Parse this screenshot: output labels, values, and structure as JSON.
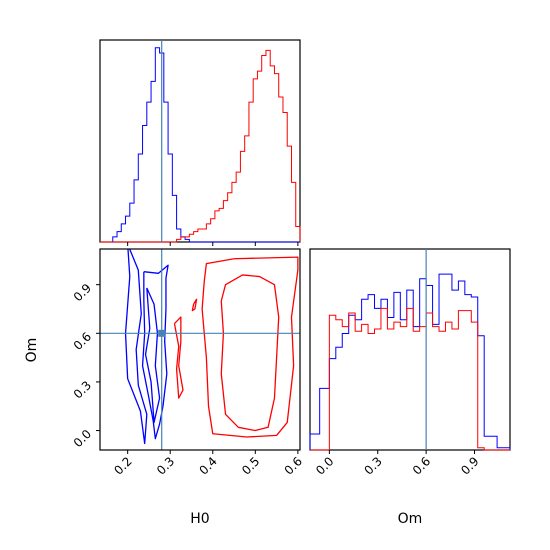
{
  "chart_data": {
    "type": "corner",
    "parameters": [
      "H0",
      "Om"
    ],
    "truth": {
      "H0": 0.28,
      "Om": 0.6
    },
    "colors": {
      "series_a": "#0000ff",
      "series_b": "#ff0000",
      "truth": "#4682b4"
    },
    "panels": [
      {
        "id": "hist-H0",
        "type": "histogram",
        "x_range": [
          0.135,
          0.605
        ],
        "bin_edges": [
          0.135,
          0.145,
          0.155,
          0.165,
          0.175,
          0.185,
          0.195,
          0.205,
          0.215,
          0.225,
          0.235,
          0.245,
          0.255,
          0.265,
          0.275,
          0.285,
          0.295,
          0.305,
          0.315,
          0.325,
          0.335,
          0.345,
          0.355,
          0.365,
          0.375,
          0.385,
          0.395,
          0.405,
          0.415,
          0.425,
          0.435,
          0.445,
          0.455,
          0.465,
          0.475,
          0.485,
          0.495,
          0.505,
          0.515,
          0.525,
          0.535,
          0.545,
          0.555,
          0.565,
          0.575,
          0.585,
          0.595,
          0.605
        ],
        "series": [
          {
            "color_key": "series_a",
            "values": [
              0,
              0,
              0,
              0.02,
              0.04,
              0.07,
              0.1,
              0.15,
              0.24,
              0.34,
              0.45,
              0.54,
              0.62,
              0.75,
              0.73,
              0.54,
              0.34,
              0.18,
              0.05,
              0.02,
              0.01,
              0,
              0,
              0,
              0,
              0,
              0,
              0,
              0,
              0,
              0,
              0,
              0,
              0,
              0,
              0,
              0,
              0,
              0,
              0,
              0,
              0,
              0,
              0,
              0,
              0,
              0
            ]
          },
          {
            "color_key": "series_b",
            "values": [
              0,
              0,
              0,
              0,
              0,
              0,
              0,
              0,
              0,
              0,
              0,
              0,
              0,
              0,
              0,
              0,
              0,
              0,
              0.01,
              0.02,
              0.02,
              0.03,
              0.04,
              0.05,
              0.05,
              0.07,
              0.09,
              0.12,
              0.13,
              0.16,
              0.19,
              0.23,
              0.27,
              0.35,
              0.41,
              0.54,
              0.63,
              0.66,
              0.72,
              0.74,
              0.68,
              0.65,
              0.56,
              0.5,
              0.37,
              0.23,
              0.06
            ]
          }
        ]
      },
      {
        "id": "contour-H0-Om",
        "type": "contour",
        "x_range": [
          0.135,
          0.605
        ],
        "y_range": [
          -0.12,
          1.12
        ],
        "contours": [
          {
            "color_key": "series_a",
            "points": [
              [
                0.2,
                0.32
              ],
              [
                0.195,
                0.6
              ],
              [
                0.205,
                0.95
              ],
              [
                0.2,
                1.15
              ],
              [
                0.225,
                0.99
              ],
              [
                0.232,
                0.72
              ],
              [
                0.22,
                0.5
              ],
              [
                0.225,
                0.28
              ],
              [
                0.245,
                0.1
              ],
              [
                0.24,
                -0.08
              ],
              [
                0.23,
                0.12
              ],
              [
                0.2,
                0.32
              ]
            ]
          },
          {
            "color_key": "series_a",
            "points": [
              [
                0.245,
                0.88
              ],
              [
                0.252,
                0.63
              ],
              [
                0.242,
                0.47
              ],
              [
                0.255,
                0.3
              ],
              [
                0.262,
                0.05
              ],
              [
                0.275,
                0.2
              ],
              [
                0.265,
                0.4
              ],
              [
                0.27,
                0.6
              ],
              [
                0.262,
                0.78
              ],
              [
                0.25,
                0.85
              ],
              [
                0.245,
                0.88
              ]
            ]
          },
          {
            "color_key": "series_a",
            "points": [
              [
                0.238,
                0.98
              ],
              [
                0.272,
                0.97
              ],
              [
                0.295,
                1.02
              ],
              [
                0.29,
                0.94
              ],
              [
                0.29,
                0.75
              ],
              [
                0.287,
                0.55
              ],
              [
                0.292,
                0.35
              ],
              [
                0.283,
                0.15
              ],
              [
                0.275,
                0.04
              ],
              [
                0.265,
                -0.05
              ],
              [
                0.26,
                0.06
              ],
              [
                0.25,
                0.2
              ],
              [
                0.235,
                0.4
              ],
              [
                0.24,
                0.6
              ],
              [
                0.238,
                0.8
              ],
              [
                0.238,
                0.98
              ]
            ]
          },
          {
            "color_key": "series_b",
            "points": [
              [
                0.42,
                0.8
              ],
              [
                0.43,
                0.9
              ],
              [
                0.47,
                0.96
              ],
              [
                0.51,
                0.95
              ],
              [
                0.545,
                0.9
              ],
              [
                0.555,
                0.7
              ],
              [
                0.55,
                0.45
              ],
              [
                0.545,
                0.2
              ],
              [
                0.53,
                0.02
              ],
              [
                0.5,
                0.0
              ],
              [
                0.46,
                0.02
              ],
              [
                0.43,
                0.1
              ],
              [
                0.42,
                0.35
              ],
              [
                0.425,
                0.6
              ],
              [
                0.42,
                0.8
              ]
            ]
          },
          {
            "color_key": "series_b",
            "points": [
              [
                0.38,
                0.92
              ],
              [
                0.385,
                1.03
              ],
              [
                0.45,
                1.06
              ],
              [
                0.6,
                1.07
              ],
              [
                0.6,
                0.99
              ],
              [
                0.585,
                0.7
              ],
              [
                0.59,
                0.4
              ],
              [
                0.575,
                0.05
              ],
              [
                0.55,
                -0.03
              ],
              [
                0.48,
                -0.04
              ],
              [
                0.4,
                -0.02
              ],
              [
                0.39,
                0.15
              ],
              [
                0.385,
                0.45
              ],
              [
                0.375,
                0.75
              ],
              [
                0.38,
                0.92
              ]
            ]
          },
          {
            "color_key": "series_b",
            "points": [
              [
                0.31,
                0.66
              ],
              [
                0.325,
                0.7
              ],
              [
                0.325,
                0.55
              ],
              [
                0.32,
                0.4
              ],
              [
                0.33,
                0.25
              ],
              [
                0.32,
                0.2
              ],
              [
                0.315,
                0.38
              ],
              [
                0.32,
                0.52
              ],
              [
                0.31,
                0.66
              ]
            ]
          },
          {
            "color_key": "series_b",
            "points": [
              [
                0.355,
                0.78
              ],
              [
                0.362,
                0.81
              ],
              [
                0.358,
                0.75
              ],
              [
                0.352,
                0.74
              ],
              [
                0.355,
                0.78
              ]
            ]
          }
        ]
      },
      {
        "id": "hist-Om",
        "type": "histogram",
        "x_range": [
          -0.12,
          1.12
        ],
        "bin_edges": [
          -0.12,
          -0.06,
          0.0,
          0.04,
          0.08,
          0.12,
          0.16,
          0.2,
          0.24,
          0.28,
          0.32,
          0.36,
          0.4,
          0.44,
          0.48,
          0.52,
          0.56,
          0.6,
          0.64,
          0.68,
          0.72,
          0.76,
          0.8,
          0.84,
          0.88,
          0.92,
          0.96,
          1.0,
          1.04,
          1.08,
          1.12
        ],
        "series": [
          {
            "color_key": "series_a",
            "values": [
              0.07,
              0.27,
              0.4,
              0.45,
              0.51,
              0.59,
              0.57,
              0.66,
              0.68,
              0.62,
              0.66,
              0.58,
              0.69,
              0.57,
              0.7,
              0.54,
              0.75,
              0.72,
              0.55,
              0.77,
              0.77,
              0.7,
              0.74,
              0.68,
              0.67,
              0.5,
              0.06,
              0.06,
              0.01,
              0.01
            ]
          },
          {
            "color_key": "series_b",
            "values": [
              0,
              0,
              0.59,
              0.57,
              0.54,
              0.6,
              0.52,
              0.55,
              0.51,
              0.53,
              0.62,
              0.53,
              0.56,
              0.54,
              0.62,
              0.52,
              0.54,
              0.6,
              0.54,
              0.52,
              0.56,
              0.53,
              0.61,
              0.61,
              0.56,
              0.01,
              0,
              0,
              0,
              0
            ]
          }
        ]
      }
    ],
    "ticks": {
      "H0": [
        "0.2",
        "0.3",
        "0.4",
        "0.5",
        "0.6"
      ],
      "Om": [
        "0.0",
        "0.3",
        "0.6",
        "0.9"
      ]
    },
    "tick_values": {
      "H0": [
        0.2,
        0.3,
        0.4,
        0.5,
        0.6
      ],
      "Om": [
        0.0,
        0.3,
        0.6,
        0.9
      ]
    },
    "xlabels": {
      "H0": "H0",
      "Om": "Om"
    },
    "ylabels": {
      "Om": "Om"
    },
    "grid": false,
    "legend": "none"
  }
}
